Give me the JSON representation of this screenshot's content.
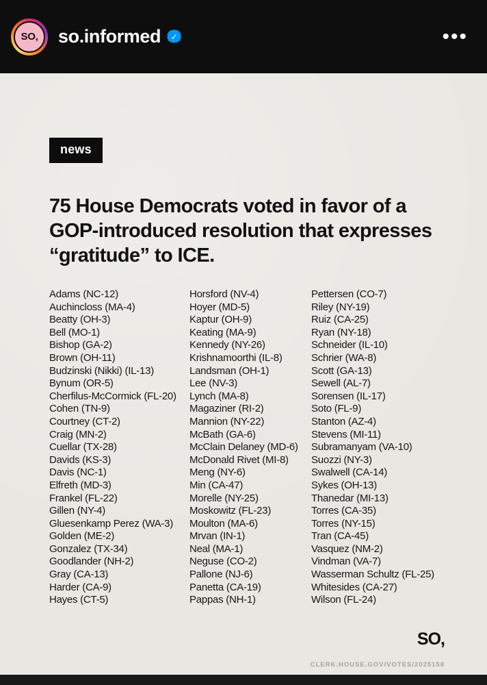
{
  "header": {
    "username": "so.informed",
    "avatar_text": "SO,",
    "verified_icon": "✓",
    "menu_icon": "•••"
  },
  "post": {
    "tag_label": "news",
    "headline": "75 House Democrats voted in favor of a GOP-introduced resolution that expresses “gratitude” to ICE.",
    "name_columns": [
      [
        "Adams (NC-12)",
        "Auchincloss (MA-4)",
        "Beatty (OH-3)",
        "Bell (MO-1)",
        "Bishop (GA-2)",
        "Brown (OH-11)",
        "Budzinski (Nikki) (IL-13)",
        "Bynum (OR-5)",
        "Cherfilus-McCormick (FL-20)",
        "Cohen (TN-9)",
        "Courtney (CT-2)",
        "Craig (MN-2)",
        "Cuellar (TX-28)",
        "Davids (KS-3)",
        "Davis (NC-1)",
        "Elfreth (MD-3)",
        "Frankel (FL-22)",
        "Gillen (NY-4)",
        "Gluesenkamp Perez (WA-3)",
        "Golden (ME-2)",
        "Gonzalez (TX-34)",
        "Goodlander (NH-2)",
        "Gray (CA-13)",
        "Harder (CA-9)",
        "Hayes (CT-5)"
      ],
      [
        "Horsford (NV-4)",
        "Hoyer (MD-5)",
        "Kaptur (OH-9)",
        "Keating (MA-9)",
        "Kennedy (NY-26)",
        "Krishnamoorthi (IL-8)",
        "Landsman (OH-1)",
        "Lee (NV-3)",
        "Lynch (MA-8)",
        "Magaziner (RI-2)",
        "Mannion (NY-22)",
        "McBath (GA-6)",
        "McClain Delaney (MD-6)",
        "McDonald Rivet (MI-8)",
        "Meng (NY-6)",
        "Min (CA-47)",
        "Morelle (NY-25)",
        "Moskowitz (FL-23)",
        "Moulton (MA-6)",
        "Mrvan (IN-1)",
        "Neal (MA-1)",
        "Neguse (CO-2)",
        "Pallone (NJ-6)",
        "Panetta (CA-19)",
        "Pappas (NH-1)"
      ],
      [
        "Pettersen (CO-7)",
        "Riley (NY-19)",
        "Ruiz (CA-25)",
        "Ryan (NY-18)",
        "Schneider (IL-10)",
        "Schrier (WA-8)",
        "Scott (GA-13)",
        "Sewell (AL-7)",
        "Sorensen (IL-17)",
        "Soto (FL-9)",
        "Stanton (AZ-4)",
        "Stevens (MI-11)",
        "Subramanyam (VA-10)",
        "Suozzi (NY-3)",
        "Swalwell (CA-14)",
        "Sykes (OH-13)",
        "Thanedar (MI-13)",
        "Torres (CA-35)",
        "Torres (NY-15)",
        "Tran (CA-45)",
        "Vasquez (NM-2)",
        "Vindman (VA-7)",
        "Wasserman Schultz (FL-25)",
        "Whitesides (CA-27)",
        "Wilson (FL-24)"
      ]
    ],
    "footer_logo": "SO,",
    "source": "CLERK.HOUSE.GOV/VOTES/2025158"
  },
  "colors": {
    "header_bg": "#0e0e0e",
    "card_bg": "#e9e7e2",
    "accent_blue": "#0095f6",
    "avatar_pink": "#f6b8c6"
  }
}
